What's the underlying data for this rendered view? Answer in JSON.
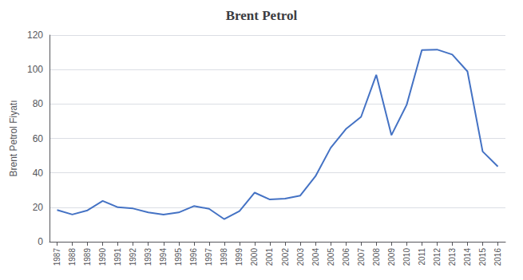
{
  "chart_data": {
    "type": "line",
    "title": "Brent Petrol",
    "ylabel": "Brent Petrol Fiyatı",
    "x": [
      1987,
      1988,
      1989,
      1990,
      1991,
      1992,
      1993,
      1994,
      1995,
      1996,
      1997,
      1998,
      1999,
      2000,
      2001,
      2002,
      2003,
      2004,
      2005,
      2006,
      2007,
      2008,
      2009,
      2010,
      2011,
      2012,
      2013,
      2014,
      2015,
      2016
    ],
    "values": [
      18.4,
      15.8,
      18.2,
      23.7,
      20.0,
      19.3,
      17.0,
      15.8,
      17.0,
      20.7,
      19.1,
      13.1,
      17.8,
      28.5,
      24.5,
      25.0,
      26.8,
      38.0,
      54.5,
      65.4,
      72.5,
      96.9,
      61.9,
      79.5,
      111.3,
      111.6,
      108.7,
      98.9,
      52.4,
      43.7
    ],
    "color": "#4472C4",
    "xlim": [
      1986.5,
      2016.5
    ],
    "xticks": [
      1987,
      1988,
      1989,
      1990,
      1991,
      1992,
      1993,
      1994,
      1995,
      1996,
      1997,
      1998,
      1999,
      2000,
      2001,
      2002,
      2003,
      2004,
      2005,
      2006,
      2007,
      2008,
      2009,
      2010,
      2011,
      2012,
      2013,
      2014,
      2015,
      2016
    ],
    "ylim": [
      0,
      120
    ],
    "yticks": [
      0,
      20,
      40,
      60,
      80,
      100,
      120
    ],
    "grid": true
  }
}
